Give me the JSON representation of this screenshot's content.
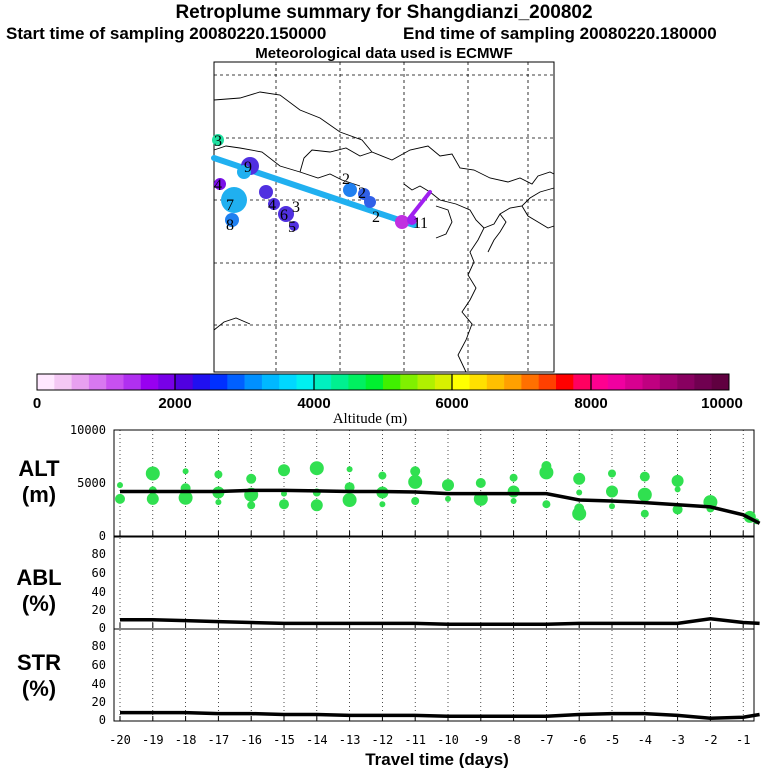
{
  "titles": {
    "main": "Retroplume summary for Shangdianzi_200802",
    "start": "Start time of sampling 20080220.150000",
    "end": "End time of sampling 20080220.180000",
    "met": "Meteorological data used is ECMWF"
  },
  "colorbar": {
    "label": "Altitude (m)",
    "ticks": [
      "0",
      "2000",
      "4000",
      "6000",
      "8000",
      "10000"
    ],
    "colors": [
      "#ffe8ff",
      "#f4c8f4",
      "#e8a0f0",
      "#d878f0",
      "#c850f0",
      "#b030f0",
      "#9800f0",
      "#7800e8",
      "#5000e0",
      "#2010f0",
      "#0030ff",
      "#0060ff",
      "#0090ff",
      "#00b8ff",
      "#00d8ff",
      "#00f0f0",
      "#00f0c0",
      "#00f090",
      "#00f060",
      "#00f030",
      "#40f000",
      "#80f000",
      "#b0f000",
      "#d8f000",
      "#ffff00",
      "#ffe000",
      "#ffc000",
      "#ffa000",
      "#ff7000",
      "#ff4000",
      "#ff0000",
      "#ff0060",
      "#ff0090",
      "#f000a0",
      "#d80090",
      "#c00080",
      "#a00070",
      "#880060",
      "#700050",
      "#600040"
    ]
  },
  "map": {
    "plume_labels": [
      "1",
      "1",
      "2",
      "2",
      "2",
      "3",
      "4",
      "5",
      "6",
      "7",
      "8",
      "9",
      "3",
      "4"
    ],
    "trajectory_color": "#20b0f0",
    "start_segment_color": "#a020f0"
  },
  "chart_data": [
    {
      "type": "line",
      "panel": "ALT",
      "ylabel": "ALT (m)",
      "ylabel_lines": [
        "ALT",
        "(m)"
      ],
      "ylim": [
        0,
        10000
      ],
      "yticks": [
        "10000",
        "5000",
        "0"
      ],
      "x": [
        -20,
        -19,
        -18,
        -17,
        -16,
        -15,
        -14,
        -13,
        -12,
        -11,
        -10,
        -9,
        -8,
        -7,
        -6,
        -5,
        -4,
        -3,
        -2,
        -1,
        -0.5
      ],
      "median_line": [
        4200,
        4200,
        4200,
        4200,
        4300,
        4300,
        4250,
        4200,
        4200,
        4150,
        4000,
        4000,
        4000,
        4000,
        3400,
        3300,
        3150,
        2950,
        2750,
        2000,
        1200
      ],
      "scatter_color": "#30e050",
      "scatter_points": [
        {
          "x": -20,
          "y": 4800
        },
        {
          "x": -20,
          "y": 3500
        },
        {
          "x": -19,
          "y": 5900
        },
        {
          "x": -19,
          "y": 4300
        },
        {
          "x": -19,
          "y": 3500
        },
        {
          "x": -18,
          "y": 6100
        },
        {
          "x": -18,
          "y": 4500
        },
        {
          "x": -18,
          "y": 3600
        },
        {
          "x": -17,
          "y": 5800
        },
        {
          "x": -17,
          "y": 4100
        },
        {
          "x": -17,
          "y": 3200
        },
        {
          "x": -16,
          "y": 5400
        },
        {
          "x": -16,
          "y": 3900
        },
        {
          "x": -16,
          "y": 2900
        },
        {
          "x": -15,
          "y": 6200
        },
        {
          "x": -15,
          "y": 4000
        },
        {
          "x": -15,
          "y": 3000
        },
        {
          "x": -14,
          "y": 6400
        },
        {
          "x": -14,
          "y": 4100
        },
        {
          "x": -14,
          "y": 2900
        },
        {
          "x": -13,
          "y": 6300
        },
        {
          "x": -13,
          "y": 4600
        },
        {
          "x": -13,
          "y": 3400
        },
        {
          "x": -12,
          "y": 5700
        },
        {
          "x": -12,
          "y": 4100
        },
        {
          "x": -12,
          "y": 3000
        },
        {
          "x": -11,
          "y": 6100
        },
        {
          "x": -11,
          "y": 5100
        },
        {
          "x": -11,
          "y": 3300
        },
        {
          "x": -10,
          "y": 4800
        },
        {
          "x": -10,
          "y": 3500
        },
        {
          "x": -9,
          "y": 5000
        },
        {
          "x": -9,
          "y": 3500
        },
        {
          "x": -8,
          "y": 5500
        },
        {
          "x": -8,
          "y": 4200
        },
        {
          "x": -8,
          "y": 3300
        },
        {
          "x": -7,
          "y": 6600
        },
        {
          "x": -7,
          "y": 6000
        },
        {
          "x": -7,
          "y": 3000
        },
        {
          "x": -6,
          "y": 5400
        },
        {
          "x": -6,
          "y": 4100
        },
        {
          "x": -6,
          "y": 2600
        },
        {
          "x": -6,
          "y": 2100
        },
        {
          "x": -5,
          "y": 5900
        },
        {
          "x": -5,
          "y": 4200
        },
        {
          "x": -5,
          "y": 2800
        },
        {
          "x": -4,
          "y": 5600
        },
        {
          "x": -4,
          "y": 3900
        },
        {
          "x": -4,
          "y": 2100
        },
        {
          "x": -3,
          "y": 5200
        },
        {
          "x": -3,
          "y": 4400
        },
        {
          "x": -3,
          "y": 2500
        },
        {
          "x": -2,
          "y": 3200
        },
        {
          "x": -2,
          "y": 2600
        },
        {
          "x": -0.8,
          "y": 1800
        },
        {
          "x": -0.6,
          "y": 1400
        }
      ]
    },
    {
      "type": "line",
      "panel": "ABL",
      "ylabel": "ABL (%)",
      "ylabel_lines": [
        "ABL",
        "(%)"
      ],
      "ylim": [
        0,
        100
      ],
      "yticks": [
        "80",
        "60",
        "40",
        "20",
        "0"
      ],
      "x": [
        -20,
        -19,
        -18,
        -17,
        -16,
        -15,
        -14,
        -13,
        -12,
        -11,
        -10,
        -9,
        -8,
        -7,
        -6,
        -5,
        -4,
        -3,
        -2,
        -1,
        -0.5
      ],
      "values": [
        9,
        9,
        8,
        7,
        6,
        5,
        5,
        5,
        5,
        5,
        4,
        4,
        4,
        4,
        5,
        5,
        5,
        5,
        10,
        6,
        5
      ]
    },
    {
      "type": "line",
      "panel": "STR",
      "ylabel": "STR (%)",
      "ylabel_lines": [
        "STR",
        "(%)"
      ],
      "ylim": [
        0,
        100
      ],
      "yticks": [
        "80",
        "60",
        "40",
        "20",
        "0"
      ],
      "x": [
        -20,
        -19,
        -18,
        -17,
        -16,
        -15,
        -14,
        -13,
        -12,
        -11,
        -10,
        -9,
        -8,
        -7,
        -6,
        -5,
        -4,
        -3,
        -2,
        -1,
        -0.5
      ],
      "values": [
        8,
        8,
        8,
        7,
        7,
        6,
        6,
        5,
        5,
        5,
        4,
        4,
        4,
        4,
        6,
        7,
        7,
        5,
        2,
        3,
        6
      ]
    }
  ],
  "xaxis": {
    "label": "Travel time (days)",
    "xlim": [
      -20,
      0
    ],
    "ticks": [
      "-20",
      "-19",
      "-18",
      "-17",
      "-16",
      "-15",
      "-14",
      "-13",
      "-12",
      "-11",
      "-10",
      "-9",
      "-8",
      "-7",
      "-6",
      "-5",
      "-4",
      "-3",
      "-2",
      "-1"
    ]
  }
}
